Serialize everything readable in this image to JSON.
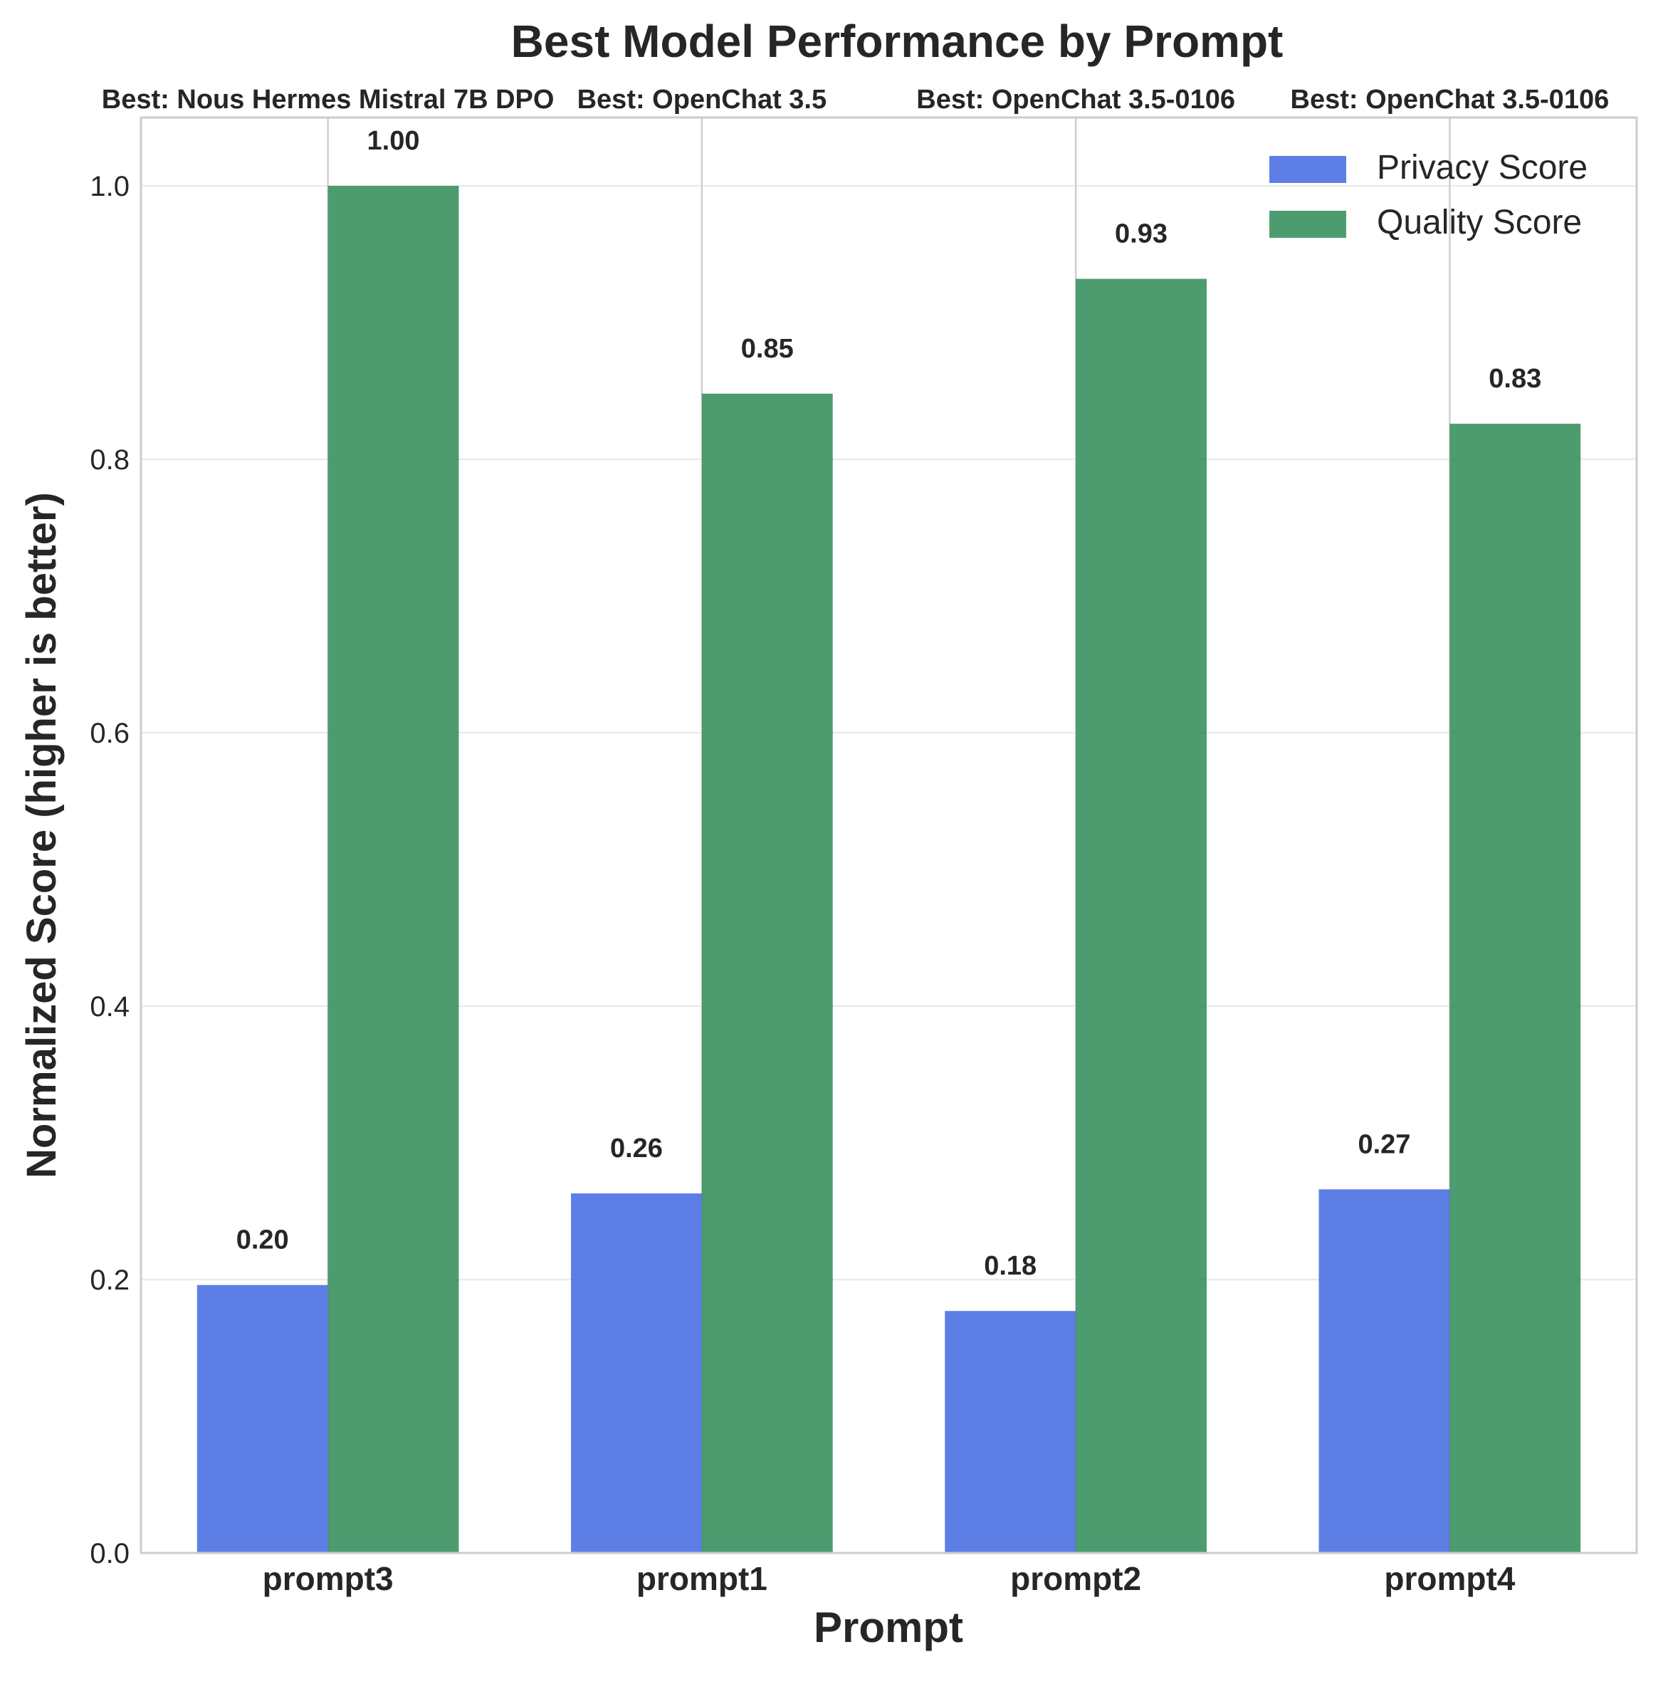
{
  "chart_data": {
    "type": "bar",
    "title": "Best Model Performance by Prompt",
    "xlabel": "Prompt",
    "ylabel": "Normalized Score (higher is better)",
    "categories": [
      "prompt3",
      "prompt1",
      "prompt2",
      "prompt4"
    ],
    "best_labels": [
      "Best: Nous Hermes Mistral 7B DPO",
      "Best: OpenChat 3.5",
      "Best: OpenChat 3.5-0106",
      "Best: OpenChat 3.5-0106"
    ],
    "series": [
      {
        "name": "Privacy Score",
        "color": "#4169e1",
        "values": [
          0.196,
          0.263,
          0.177,
          0.266
        ],
        "labels": [
          "0.20",
          "0.26",
          "0.18",
          "0.27"
        ]
      },
      {
        "name": "Quality Score",
        "color": "#2e8b57",
        "values": [
          1.0,
          0.848,
          0.932,
          0.826
        ],
        "labels": [
          "1.00",
          "0.85",
          "0.93",
          "0.83"
        ]
      }
    ],
    "ylim": [
      0,
      1.05
    ],
    "yticks": [
      "0.0",
      "0.2",
      "0.4",
      "0.6",
      "0.8",
      "1.0"
    ],
    "ytick_values": [
      0,
      0.2,
      0.4,
      0.6,
      0.8,
      1.0
    ],
    "grid": true,
    "legend_position": "top-right"
  }
}
